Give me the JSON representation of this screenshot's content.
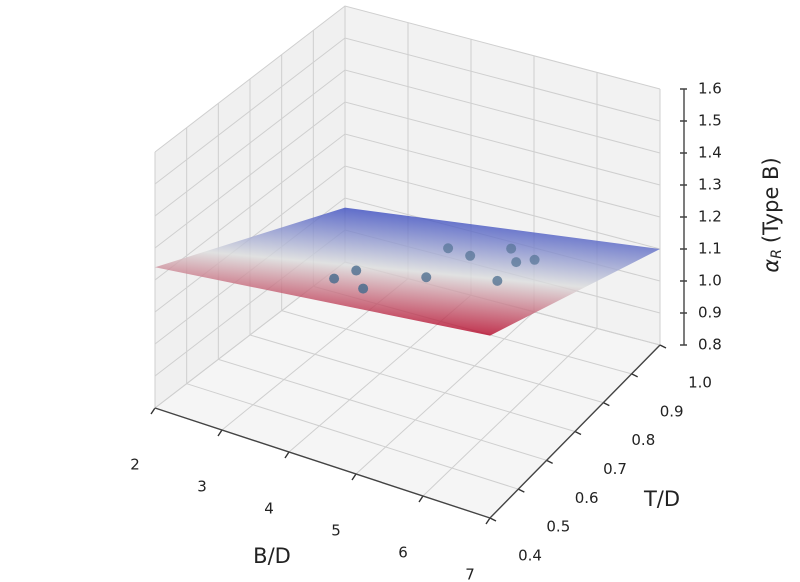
{
  "chart_data": {
    "type": "surface3d",
    "xlabel": "B/D",
    "ylabel": "T/D",
    "zlabel": {
      "symbol": "α",
      "subscript": "R",
      "text": "(Type B)"
    },
    "xlim": [
      2,
      7
    ],
    "ylim": [
      0.4,
      1.0
    ],
    "zlim": [
      0.8,
      1.6
    ],
    "xticks": [
      2,
      3,
      4,
      5,
      6,
      7
    ],
    "yticks": [
      0.4,
      0.5,
      0.6,
      0.7,
      0.8,
      0.9,
      {
        "value": 1.0,
        "label": "1.0"
      }
    ],
    "zticks": [
      0.8,
      0.9,
      {
        "value": 1.0,
        "label": "1.0"
      },
      1.1,
      1.2,
      1.3,
      1.4,
      1.5,
      1.6
    ],
    "grid": true,
    "surface": {
      "x": [
        2,
        7
      ],
      "y": [
        0.4,
        1.0
      ],
      "z": [
        [
          1.24,
          1.37
        ],
        [
          0.97,
          1.1
        ]
      ],
      "colormap": [
        "#3b4cc0",
        "#dcdddd",
        "#b40426"
      ]
    },
    "scatter": {
      "color": "#4d6e8f",
      "x": [
        4.04,
        4.1,
        4.57,
        4.94,
        4.4,
        4.93,
        5.2,
        5.6,
        5.85,
        5.75
      ],
      "y": [
        0.54,
        0.6,
        0.52,
        0.65,
        0.84,
        0.8,
        0.88,
        0.81,
        0.69,
        0.84
      ],
      "z": [
        1.23,
        1.21,
        1.25,
        1.2,
        1.1,
        1.14,
        1.11,
        1.15,
        1.21,
        1.14
      ]
    }
  }
}
